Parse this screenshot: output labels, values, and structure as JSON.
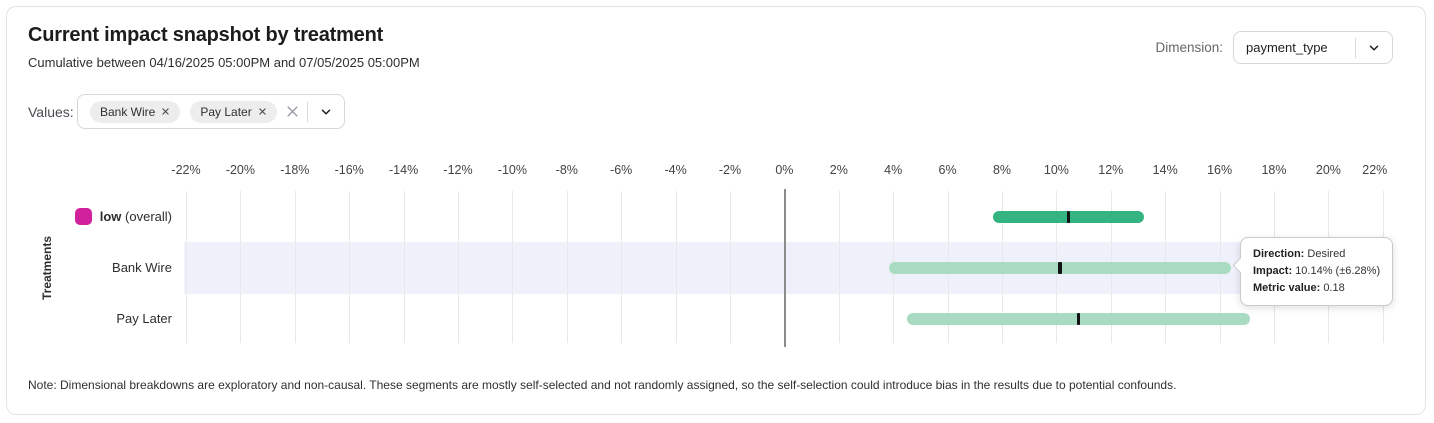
{
  "header": {
    "title": "Current impact snapshot by treatment",
    "subtitle": "Cumulative between 04/16/2025 05:00PM and 07/05/2025 05:00PM",
    "dimension_label": "Dimension:",
    "dimension_value": "payment_type"
  },
  "filters": {
    "values_label": "Values:",
    "chips": [
      {
        "label": "Bank Wire"
      },
      {
        "label": "Pay Later"
      }
    ]
  },
  "chart_data": {
    "type": "range_bar",
    "title": "Current impact snapshot by treatment",
    "xlabel": "",
    "ylabel": "Treatments",
    "x_axis": {
      "min": -22,
      "max": 22,
      "step": 2,
      "unit": "%"
    },
    "grid": true,
    "rows": [
      {
        "label": "low",
        "suffix": " (overall)",
        "label_bold": true,
        "swatch_color": "#d1219c",
        "impact": 10.44,
        "margin": 2.78,
        "bar_color": "#34b480",
        "highlighted": false
      },
      {
        "label": "Bank Wire",
        "suffix": "",
        "label_bold": false,
        "impact": 10.14,
        "margin": 6.28,
        "bar_color": "#a9dbc2",
        "highlighted": true
      },
      {
        "label": "Pay Later",
        "suffix": "",
        "label_bold": false,
        "impact": 10.81,
        "margin": 6.29,
        "bar_color": "#a9dbc2",
        "highlighted": false
      }
    ]
  },
  "tooltip": {
    "direction_label": "Direction:",
    "direction_value": "Desired",
    "impact_label": "Impact:",
    "impact_value": "10.14% (±6.28%)",
    "metric_label": "Metric value:",
    "metric_value": "0.18"
  },
  "note": "Note: Dimensional breakdowns are exploratory and non-causal. These segments are mostly self-selected and not randomly assigned, so the self-selection could introduce bias in the results due to potential confounds.",
  "colors": {
    "accent_magenta": "#d1219c",
    "bar_dark_green": "#34b480",
    "bar_light_green": "#a9dbc2",
    "row_highlight": "#eef0fa"
  }
}
